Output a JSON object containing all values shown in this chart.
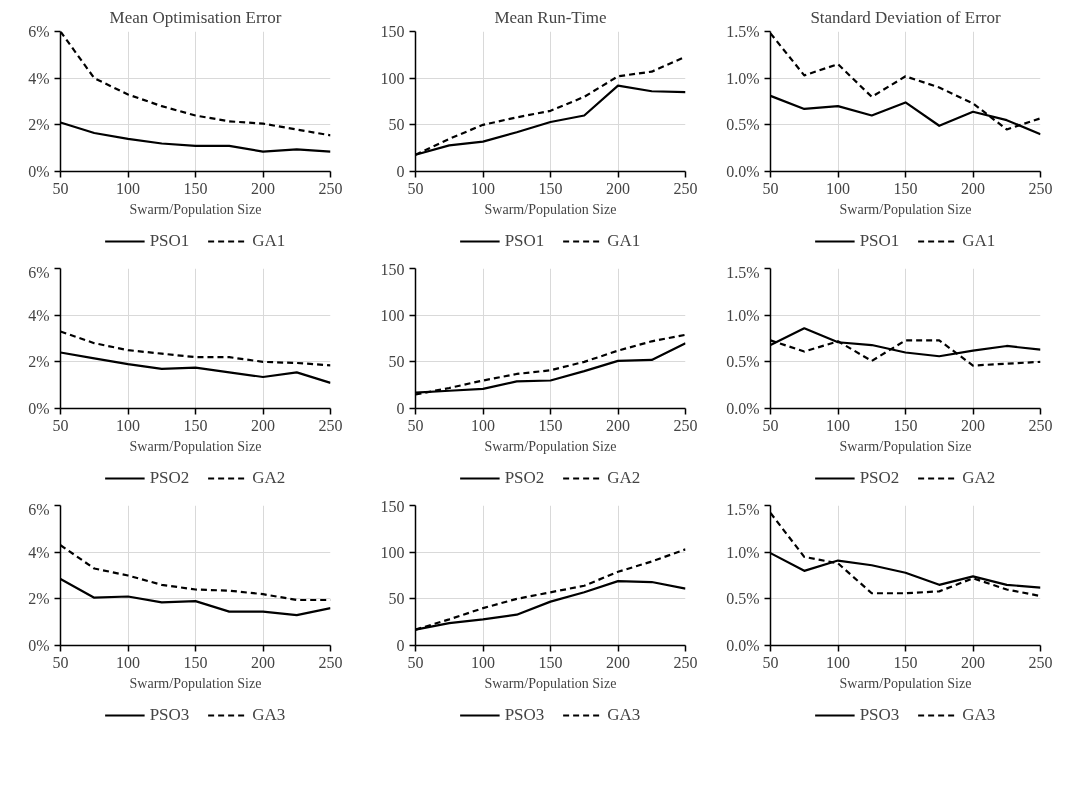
{
  "chart_data": [
    {
      "type": "line",
      "title": "Mean Optimisation Error",
      "xlabel": "Swarm/Population Size",
      "x": [
        50,
        75,
        100,
        125,
        150,
        175,
        200,
        225,
        250
      ],
      "xlim": [
        50,
        250
      ],
      "xticks": [
        50,
        100,
        150,
        200,
        250
      ],
      "ylim": [
        0,
        6
      ],
      "yticks": [
        {
          "value": 0,
          "label": "0%"
        },
        {
          "value": 2,
          "label": "2%"
        },
        {
          "value": 4,
          "label": "4%"
        },
        {
          "value": 6,
          "label": "6%"
        }
      ],
      "grid": true,
      "legend": "bottom",
      "series": [
        {
          "name": "PSO1",
          "color": "#000000",
          "line_style": "solid",
          "values": [
            2.1,
            1.65,
            1.4,
            1.2,
            1.1,
            1.1,
            0.85,
            0.95,
            0.85
          ]
        },
        {
          "name": "GA1",
          "color": "#000000",
          "line_style": "dashed",
          "values": [
            6.0,
            4.0,
            3.3,
            2.8,
            2.4,
            2.15,
            2.05,
            1.8,
            1.55
          ]
        }
      ]
    },
    {
      "type": "line",
      "title": "Mean Run-Time",
      "xlabel": "Swarm/Population Size",
      "x": [
        50,
        75,
        100,
        125,
        150,
        175,
        200,
        225,
        250
      ],
      "xlim": [
        50,
        250
      ],
      "xticks": [
        50,
        100,
        150,
        200,
        250
      ],
      "ylim": [
        0,
        150
      ],
      "yticks": [
        0,
        50,
        100,
        150
      ],
      "grid": true,
      "legend": "bottom",
      "series": [
        {
          "name": "PSO1",
          "color": "#000000",
          "line_style": "solid",
          "values": [
            18,
            28,
            32,
            42,
            53,
            60,
            92,
            86,
            85
          ]
        },
        {
          "name": "GA1",
          "color": "#000000",
          "line_style": "dashed",
          "values": [
            18,
            35,
            50,
            58,
            65,
            80,
            102,
            107,
            123
          ]
        }
      ]
    },
    {
      "type": "line",
      "title": "Standard Deviation of Error",
      "xlabel": "Swarm/Population Size",
      "x": [
        50,
        75,
        100,
        125,
        150,
        175,
        200,
        225,
        250
      ],
      "xlim": [
        50,
        250
      ],
      "xticks": [
        50,
        100,
        150,
        200,
        250
      ],
      "ylim": [
        0,
        1.5
      ],
      "yticks": [
        {
          "value": 0,
          "label": "0.0%"
        },
        {
          "value": 0.5,
          "label": "0.5%"
        },
        {
          "value": 1.0,
          "label": "1.0%"
        },
        {
          "value": 1.5,
          "label": "1.5%"
        }
      ],
      "grid": true,
      "legend": "bottom",
      "series": [
        {
          "name": "PSO1",
          "color": "#000000",
          "line_style": "solid",
          "values": [
            0.81,
            0.67,
            0.7,
            0.6,
            0.74,
            0.49,
            0.64,
            0.55,
            0.4
          ]
        },
        {
          "name": "GA1",
          "color": "#000000",
          "line_style": "dashed",
          "values": [
            1.48,
            1.03,
            1.15,
            0.8,
            1.02,
            0.9,
            0.73,
            0.45,
            0.57
          ]
        }
      ]
    },
    {
      "type": "line",
      "xlabel": "Swarm/Population Size",
      "x": [
        50,
        75,
        100,
        125,
        150,
        175,
        200,
        225,
        250
      ],
      "xlim": [
        50,
        250
      ],
      "xticks": [
        50,
        100,
        150,
        200,
        250
      ],
      "ylim": [
        0,
        6
      ],
      "yticks": [
        {
          "value": 0,
          "label": "0%"
        },
        {
          "value": 2,
          "label": "2%"
        },
        {
          "value": 4,
          "label": "4%"
        },
        {
          "value": 6,
          "label": "6%"
        }
      ],
      "grid": true,
      "legend": "bottom",
      "series": [
        {
          "name": "PSO2",
          "color": "#000000",
          "line_style": "solid",
          "values": [
            2.4,
            2.15,
            1.9,
            1.7,
            1.75,
            1.55,
            1.35,
            1.55,
            1.1
          ]
        },
        {
          "name": "GA2",
          "color": "#000000",
          "line_style": "dashed",
          "values": [
            3.3,
            2.8,
            2.5,
            2.35,
            2.2,
            2.2,
            2.0,
            1.95,
            1.85
          ]
        }
      ]
    },
    {
      "type": "line",
      "xlabel": "Swarm/Population Size",
      "x": [
        50,
        75,
        100,
        125,
        150,
        175,
        200,
        225,
        250
      ],
      "xlim": [
        50,
        250
      ],
      "xticks": [
        50,
        100,
        150,
        200,
        250
      ],
      "ylim": [
        0,
        150
      ],
      "yticks": [
        0,
        50,
        100,
        150
      ],
      "grid": true,
      "legend": "bottom",
      "series": [
        {
          "name": "PSO2",
          "color": "#000000",
          "line_style": "solid",
          "values": [
            17,
            19,
            21,
            29,
            30,
            40,
            51,
            52,
            70
          ]
        },
        {
          "name": "GA2",
          "color": "#000000",
          "line_style": "dashed",
          "values": [
            15,
            22,
            30,
            37,
            41,
            50,
            62,
            72,
            79
          ]
        }
      ]
    },
    {
      "type": "line",
      "xlabel": "Swarm/Population Size",
      "x": [
        50,
        75,
        100,
        125,
        150,
        175,
        200,
        225,
        250
      ],
      "xlim": [
        50,
        250
      ],
      "xticks": [
        50,
        100,
        150,
        200,
        250
      ],
      "ylim": [
        0,
        1.5
      ],
      "yticks": [
        {
          "value": 0,
          "label": "0.0%"
        },
        {
          "value": 0.5,
          "label": "0.5%"
        },
        {
          "value": 1.0,
          "label": "1.0%"
        },
        {
          "value": 1.5,
          "label": "1.5%"
        }
      ],
      "grid": true,
      "legend": "bottom",
      "series": [
        {
          "name": "PSO2",
          "color": "#000000",
          "line_style": "solid",
          "values": [
            0.68,
            0.86,
            0.71,
            0.68,
            0.6,
            0.56,
            0.62,
            0.67,
            0.63
          ]
        },
        {
          "name": "GA2",
          "color": "#000000",
          "line_style": "dashed",
          "values": [
            0.73,
            0.61,
            0.72,
            0.51,
            0.73,
            0.73,
            0.46,
            0.48,
            0.5
          ]
        }
      ]
    },
    {
      "type": "line",
      "xlabel": "Swarm/Population Size",
      "x": [
        50,
        75,
        100,
        125,
        150,
        175,
        200,
        225,
        250
      ],
      "xlim": [
        50,
        250
      ],
      "xticks": [
        50,
        100,
        150,
        200,
        250
      ],
      "ylim": [
        0,
        6
      ],
      "yticks": [
        {
          "value": 0,
          "label": "0%"
        },
        {
          "value": 2,
          "label": "2%"
        },
        {
          "value": 4,
          "label": "4%"
        },
        {
          "value": 6,
          "label": "6%"
        }
      ],
      "grid": true,
      "legend": "bottom",
      "series": [
        {
          "name": "PSO3",
          "color": "#000000",
          "line_style": "solid",
          "values": [
            2.85,
            2.05,
            2.1,
            1.85,
            1.9,
            1.45,
            1.45,
            1.3,
            1.6
          ]
        },
        {
          "name": "GA3",
          "color": "#000000",
          "line_style": "dashed",
          "values": [
            4.3,
            3.3,
            3.0,
            2.6,
            2.4,
            2.35,
            2.2,
            1.95,
            1.95
          ]
        }
      ]
    },
    {
      "type": "line",
      "xlabel": "Swarm/Population Size",
      "x": [
        50,
        75,
        100,
        125,
        150,
        175,
        200,
        225,
        250
      ],
      "xlim": [
        50,
        250
      ],
      "xticks": [
        50,
        100,
        150,
        200,
        250
      ],
      "ylim": [
        0,
        150
      ],
      "yticks": [
        0,
        50,
        100,
        150
      ],
      "grid": true,
      "legend": "bottom",
      "series": [
        {
          "name": "PSO3",
          "color": "#000000",
          "line_style": "solid",
          "values": [
            17,
            24,
            28,
            33,
            47,
            57,
            69,
            68,
            61
          ]
        },
        {
          "name": "GA3",
          "color": "#000000",
          "line_style": "dashed",
          "values": [
            17,
            28,
            40,
            50,
            57,
            64,
            79,
            90,
            103
          ]
        }
      ]
    },
    {
      "type": "line",
      "xlabel": "Swarm/Population Size",
      "x": [
        50,
        75,
        100,
        125,
        150,
        175,
        200,
        225,
        250
      ],
      "xlim": [
        50,
        250
      ],
      "xticks": [
        50,
        100,
        150,
        200,
        250
      ],
      "ylim": [
        0,
        1.5
      ],
      "yticks": [
        {
          "value": 0,
          "label": "0.0%"
        },
        {
          "value": 0.5,
          "label": "0.5%"
        },
        {
          "value": 1.0,
          "label": "1.0%"
        },
        {
          "value": 1.5,
          "label": "1.5%"
        }
      ],
      "grid": true,
      "legend": "bottom",
      "series": [
        {
          "name": "PSO3",
          "color": "#000000",
          "line_style": "solid",
          "values": [
            0.99,
            0.8,
            0.91,
            0.86,
            0.78,
            0.65,
            0.74,
            0.65,
            0.62
          ]
        },
        {
          "name": "GA3",
          "color": "#000000",
          "line_style": "dashed",
          "values": [
            1.42,
            0.95,
            0.88,
            0.56,
            0.56,
            0.58,
            0.72,
            0.6,
            0.53
          ]
        }
      ]
    }
  ]
}
